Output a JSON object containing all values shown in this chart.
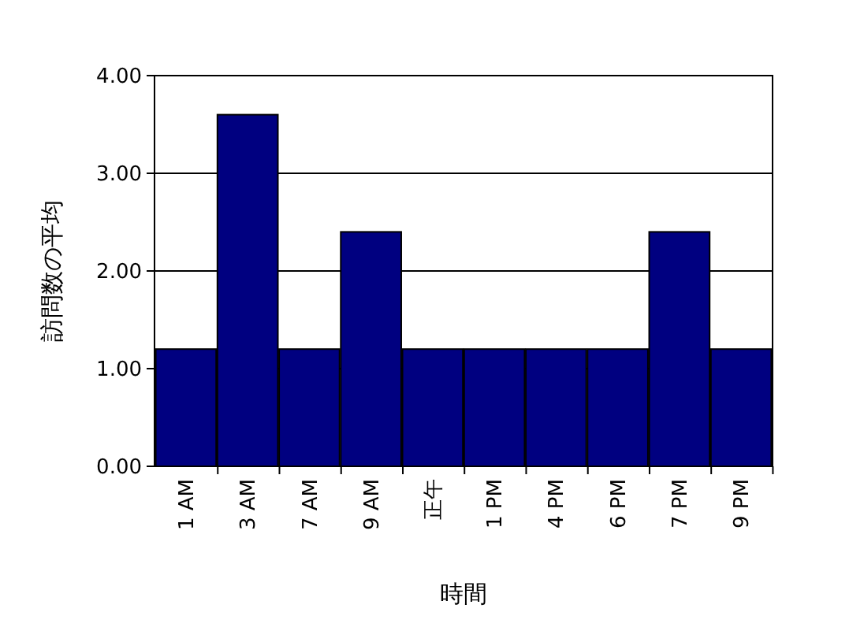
{
  "chart_data": {
    "type": "bar",
    "xlabel": "時間",
    "ylabel": "訪問数の平均",
    "categories": [
      "1 AM",
      "3 AM",
      "7 AM",
      "9 AM",
      "正午",
      "1 PM",
      "4 PM",
      "6 PM",
      "7 PM",
      "9 PM"
    ],
    "values": [
      1.2,
      3.6,
      1.2,
      2.4,
      1.2,
      1.2,
      1.2,
      1.2,
      2.4,
      1.2
    ],
    "color": "#000080",
    "ylim": [
      0,
      4
    ],
    "yticks": [
      {
        "value": 0,
        "label": "0.00"
      },
      {
        "value": 1,
        "label": "1.00"
      },
      {
        "value": 2,
        "label": "2.00"
      },
      {
        "value": 3,
        "label": "3.00"
      },
      {
        "value": 4,
        "label": "4.00"
      }
    ],
    "grid": "y"
  }
}
